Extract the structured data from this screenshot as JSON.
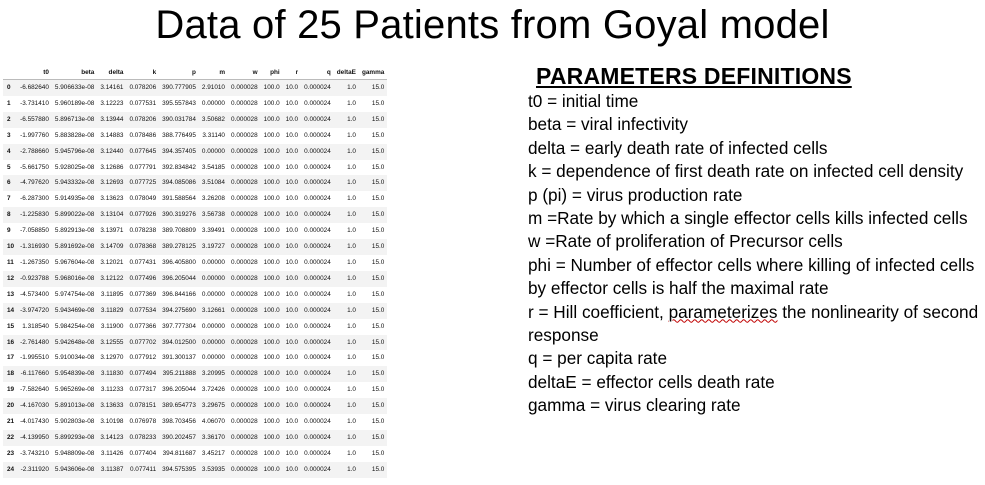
{
  "title": "Data of 25 Patients from Goyal model",
  "table": {
    "columns": [
      "",
      "t0",
      "beta",
      "delta",
      "k",
      "p",
      "m",
      "w",
      "phi",
      "r",
      "q",
      "deltaE",
      "gamma"
    ],
    "rows": [
      [
        "0",
        "-6.682640",
        "5.906633e-08",
        "3.14161",
        "0.078206",
        "390.777905",
        "2.91010",
        "0.000028",
        "100.0",
        "10.0",
        "0.000024",
        "1.0",
        "15.0"
      ],
      [
        "1",
        "-3.731410",
        "5.960189e-08",
        "3.12223",
        "0.077531",
        "395.557843",
        "0.00000",
        "0.000028",
        "100.0",
        "10.0",
        "0.000024",
        "1.0",
        "15.0"
      ],
      [
        "2",
        "-6.557880",
        "5.896713e-08",
        "3.13944",
        "0.078206",
        "390.031784",
        "3.50682",
        "0.000028",
        "100.0",
        "10.0",
        "0.000024",
        "1.0",
        "15.0"
      ],
      [
        "3",
        "-1.997760",
        "5.883828e-08",
        "3.14883",
        "0.078486",
        "388.776495",
        "3.31140",
        "0.000028",
        "100.0",
        "10.0",
        "0.000024",
        "1.0",
        "15.0"
      ],
      [
        "4",
        "-2.788660",
        "5.945796e-08",
        "3.12440",
        "0.077645",
        "394.357405",
        "0.00000",
        "0.000028",
        "100.0",
        "10.0",
        "0.000024",
        "1.0",
        "15.0"
      ],
      [
        "5",
        "-5.661750",
        "5.928025e-08",
        "3.12686",
        "0.077791",
        "392.834842",
        "3.54185",
        "0.000028",
        "100.0",
        "10.0",
        "0.000024",
        "1.0",
        "15.0"
      ],
      [
        "6",
        "-4.797620",
        "5.943332e-08",
        "3.12693",
        "0.077725",
        "394.085086",
        "3.51084",
        "0.000028",
        "100.0",
        "10.0",
        "0.000024",
        "1.0",
        "15.0"
      ],
      [
        "7",
        "-6.287300",
        "5.914935e-08",
        "3.13623",
        "0.078049",
        "391.588564",
        "3.26208",
        "0.000028",
        "100.0",
        "10.0",
        "0.000024",
        "1.0",
        "15.0"
      ],
      [
        "8",
        "-1.225830",
        "5.899022e-08",
        "3.13104",
        "0.077926",
        "390.319276",
        "3.56738",
        "0.000028",
        "100.0",
        "10.0",
        "0.000024",
        "1.0",
        "15.0"
      ],
      [
        "9",
        "-7.058850",
        "5.892913e-08",
        "3.13971",
        "0.078238",
        "389.708809",
        "3.39491",
        "0.000028",
        "100.0",
        "10.0",
        "0.000024",
        "1.0",
        "15.0"
      ],
      [
        "10",
        "-1.316930",
        "5.891692e-08",
        "3.14709",
        "0.078368",
        "389.278125",
        "3.19727",
        "0.000028",
        "100.0",
        "10.0",
        "0.000024",
        "1.0",
        "15.0"
      ],
      [
        "11",
        "-1.267350",
        "5.967604e-08",
        "3.12021",
        "0.077431",
        "396.405800",
        "0.00000",
        "0.000028",
        "100.0",
        "10.0",
        "0.000024",
        "1.0",
        "15.0"
      ],
      [
        "12",
        "-0.923788",
        "5.968016e-08",
        "3.12122",
        "0.077496",
        "396.205044",
        "0.00000",
        "0.000028",
        "100.0",
        "10.0",
        "0.000024",
        "1.0",
        "15.0"
      ],
      [
        "13",
        "-4.573400",
        "5.974754e-08",
        "3.11895",
        "0.077369",
        "396.844166",
        "0.00000",
        "0.000028",
        "100.0",
        "10.0",
        "0.000024",
        "1.0",
        "15.0"
      ],
      [
        "14",
        "-3.974720",
        "5.943469e-08",
        "3.11829",
        "0.077534",
        "394.275690",
        "3.12661",
        "0.000028",
        "100.0",
        "10.0",
        "0.000024",
        "1.0",
        "15.0"
      ],
      [
        "15",
        "1.318540",
        "5.984254e-08",
        "3.11900",
        "0.077366",
        "397.777304",
        "0.00000",
        "0.000028",
        "100.0",
        "10.0",
        "0.000024",
        "1.0",
        "15.0"
      ],
      [
        "16",
        "-2.761480",
        "5.942648e-08",
        "3.12555",
        "0.077702",
        "394.012500",
        "0.00000",
        "0.000028",
        "100.0",
        "10.0",
        "0.000024",
        "1.0",
        "15.0"
      ],
      [
        "17",
        "-1.995510",
        "5.910034e-08",
        "3.12970",
        "0.077912",
        "391.300137",
        "0.00000",
        "0.000028",
        "100.0",
        "10.0",
        "0.000024",
        "1.0",
        "15.0"
      ],
      [
        "18",
        "-6.117660",
        "5.954839e-08",
        "3.11830",
        "0.077494",
        "395.211888",
        "3.20995",
        "0.000028",
        "100.0",
        "10.0",
        "0.000024",
        "1.0",
        "15.0"
      ],
      [
        "19",
        "-7.582640",
        "5.965269e-08",
        "3.11233",
        "0.077317",
        "396.205044",
        "3.72426",
        "0.000028",
        "100.0",
        "10.0",
        "0.000024",
        "1.0",
        "15.0"
      ],
      [
        "20",
        "-4.167030",
        "5.891013e-08",
        "3.13633",
        "0.078151",
        "389.654773",
        "3.29675",
        "0.000028",
        "100.0",
        "10.0",
        "0.000024",
        "1.0",
        "15.0"
      ],
      [
        "21",
        "-4.017430",
        "5.902803e-08",
        "3.10198",
        "0.076978",
        "398.703456",
        "4.06070",
        "0.000028",
        "100.0",
        "10.0",
        "0.000024",
        "1.0",
        "15.0"
      ],
      [
        "22",
        "-4.139950",
        "5.899293e-08",
        "3.14123",
        "0.078233",
        "390.202457",
        "3.36170",
        "0.000028",
        "100.0",
        "10.0",
        "0.000024",
        "1.0",
        "15.0"
      ],
      [
        "23",
        "-3.743210",
        "5.948809e-08",
        "3.11426",
        "0.077404",
        "394.811687",
        "3.45217",
        "0.000028",
        "100.0",
        "10.0",
        "0.000024",
        "1.0",
        "15.0"
      ],
      [
        "24",
        "-2.311920",
        "5.943606e-08",
        "3.11387",
        "0.077411",
        "394.575395",
        "3.53935",
        "0.000028",
        "100.0",
        "10.0",
        "0.000024",
        "1.0",
        "15.0"
      ]
    ]
  },
  "parameters": {
    "heading": "PARAMETERS DEFINITIONS",
    "items": [
      "t0 = initial time",
      "beta = viral infectivity",
      "delta = early death rate of infected cells",
      "k = dependence of first death rate on infected cell density",
      "p (pi) = virus production rate",
      "m =Rate by which a single effector cells kills infected cells",
      "w =Rate of proliferation of Precursor cells",
      "phi = Number of effector cells where killing of infected cells by effector cells is half the maximal rate",
      "r = Hill coefficient, parameterizes the nonlinearity of second response",
      "q = per capita rate",
      "deltaE = effector cells death rate",
      "gamma = virus clearing rate"
    ]
  }
}
